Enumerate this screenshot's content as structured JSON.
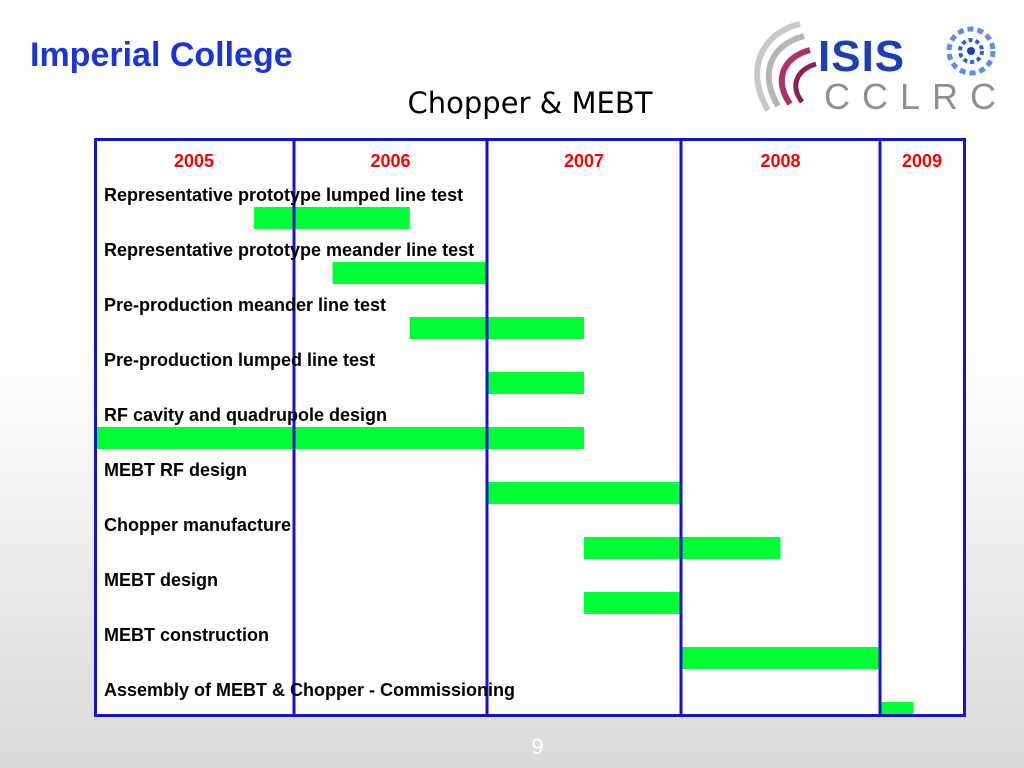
{
  "header": {
    "organization": "Imperial College",
    "title": "Chopper & MEBT"
  },
  "logo": {
    "line1": "ISIS",
    "line2": "CCLRC",
    "colors": {
      "isis": "#1c3fb3",
      "cclrc": "#8f8f8f",
      "swoosh": "#b0306a"
    }
  },
  "chart_data": {
    "type": "gantt",
    "years": [
      "2005",
      "2006",
      "2007",
      "2008",
      "2009"
    ],
    "colors": {
      "bar": "#00ff33",
      "grid": "#1414c8",
      "year_label": "#ff0000",
      "task_label": "#000000"
    },
    "tasks": [
      {
        "label": "Representative prototype lumped line test",
        "start": 2005.8,
        "end": 2006.6
      },
      {
        "label": "Representative prototype meander  line test",
        "start": 2006.2,
        "end": 2007.0
      },
      {
        "label": "Pre-production meander line test",
        "start": 2006.6,
        "end": 2007.5
      },
      {
        "label": "Pre-production lumped line test",
        "start": 2007.0,
        "end": 2007.5
      },
      {
        "label": "RF cavity and quadrupole design",
        "start": 2005.0,
        "end": 2007.5
      },
      {
        "label": "MEBT RF design",
        "start": 2007.0,
        "end": 2008.0
      },
      {
        "label": "Chopper manufacture",
        "start": 2007.5,
        "end": 2008.5
      },
      {
        "label": "MEBT design",
        "start": 2007.5,
        "end": 2008.0
      },
      {
        "label": "MEBT construction",
        "start": 2008.0,
        "end": 2009.0
      },
      {
        "label": "Assembly of MEBT & Chopper - Commissioning",
        "start": 2009.0,
        "end": 2009.4
      }
    ]
  },
  "footer": {
    "page_number": "9"
  }
}
